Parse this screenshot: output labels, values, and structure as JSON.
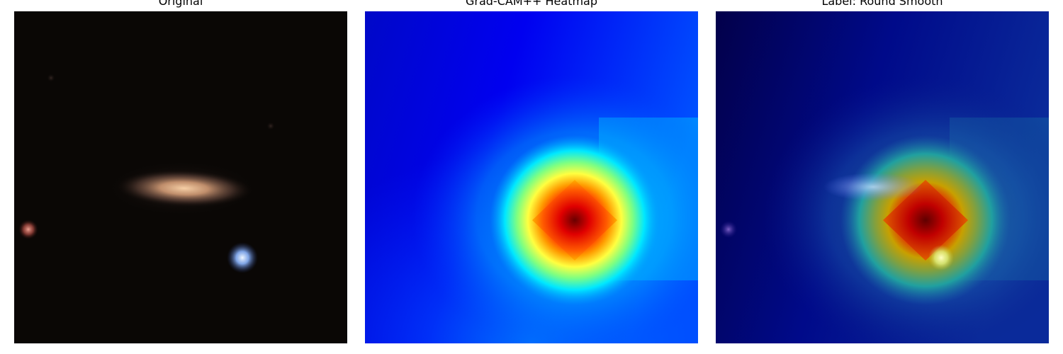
{
  "panels": [
    {
      "title": "Original"
    },
    {
      "title": "Grad-CAM++ Heatmap"
    },
    {
      "title": "Label: Round Smooth"
    }
  ],
  "colors": {
    "sky_background": "#0a0705",
    "galaxy_core": "#f2c49a",
    "blue_star": "#9fc8ff",
    "red_star": "#d77a6c",
    "heatmap_low": "#00008b",
    "heatmap_mid": "#00e6ff",
    "heatmap_high": "#ff0000",
    "heatmap_peak": "#7a0000"
  },
  "icons": {
    "panel_1": "astronomy-photo",
    "panel_2": "attention-heatmap",
    "panel_3": "heatmap-overlay"
  }
}
